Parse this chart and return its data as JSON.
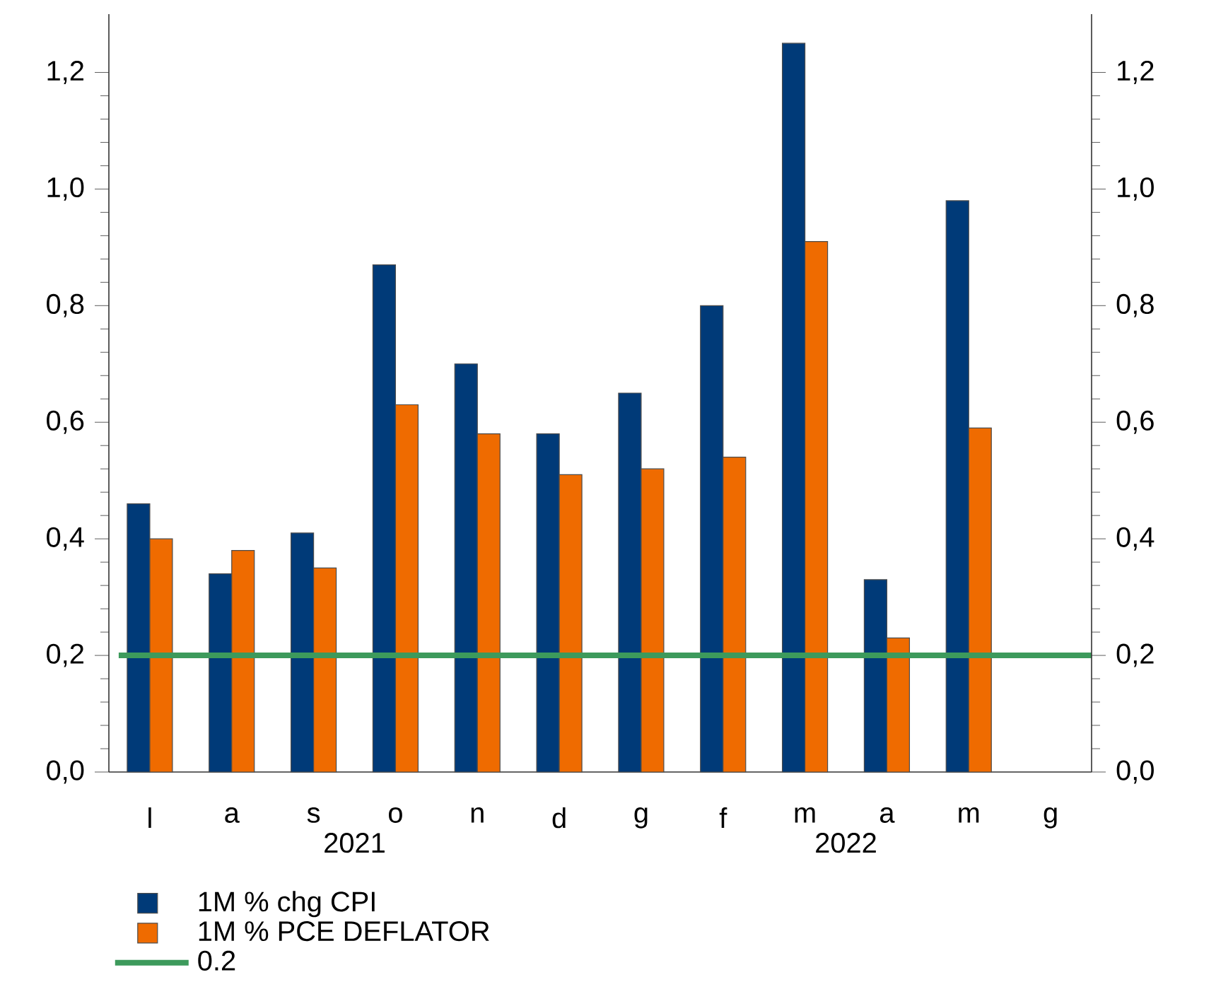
{
  "chart_data": {
    "type": "bar",
    "categories": [
      "l",
      "a",
      "s",
      "o",
      "n",
      "d",
      "g",
      "f",
      "m",
      "a",
      "m",
      "g"
    ],
    "series": [
      {
        "name": "1M % chg CPI",
        "color": "#003a78",
        "values": [
          0.46,
          0.34,
          0.41,
          0.87,
          0.7,
          0.58,
          0.65,
          0.8,
          1.25,
          0.33,
          0.98,
          null
        ]
      },
      {
        "name": "1M % PCE DEFLATOR",
        "color": "#ef6b00",
        "values": [
          0.4,
          0.38,
          0.35,
          0.63,
          0.58,
          0.51,
          0.52,
          0.54,
          0.91,
          0.23,
          0.59,
          null
        ]
      }
    ],
    "ylim": [
      0,
      1.3
    ],
    "yticks": [
      {
        "value": 0,
        "label": "0,0"
      },
      {
        "value": 0.2,
        "label": "0,2"
      },
      {
        "value": 0.4,
        "label": "0,4"
      },
      {
        "value": 0.6,
        "label": "0,6"
      },
      {
        "value": 0.8,
        "label": "0,8"
      },
      {
        "value": 1.0,
        "label": "1,0"
      },
      {
        "value": 1.2,
        "label": "1,2"
      }
    ],
    "y2lim": [
      0,
      1.3
    ],
    "y2ticks": [
      {
        "value": 0,
        "label": "0,0"
      },
      {
        "value": 0.2,
        "label": "0,2"
      },
      {
        "value": 0.4,
        "label": "0,4"
      },
      {
        "value": 0.6,
        "label": "0,6"
      },
      {
        "value": 0.8,
        "label": "0,8"
      },
      {
        "value": 1.0,
        "label": "1,0"
      },
      {
        "value": 1.2,
        "label": "1,2"
      }
    ],
    "ref_lines": [
      {
        "axis": "y",
        "value": 0.2,
        "label": "0.2",
        "color": "#3d9a5c"
      }
    ],
    "annotations": [
      "2021",
      "2022"
    ],
    "legend": "bottom left",
    "grid": false
  }
}
